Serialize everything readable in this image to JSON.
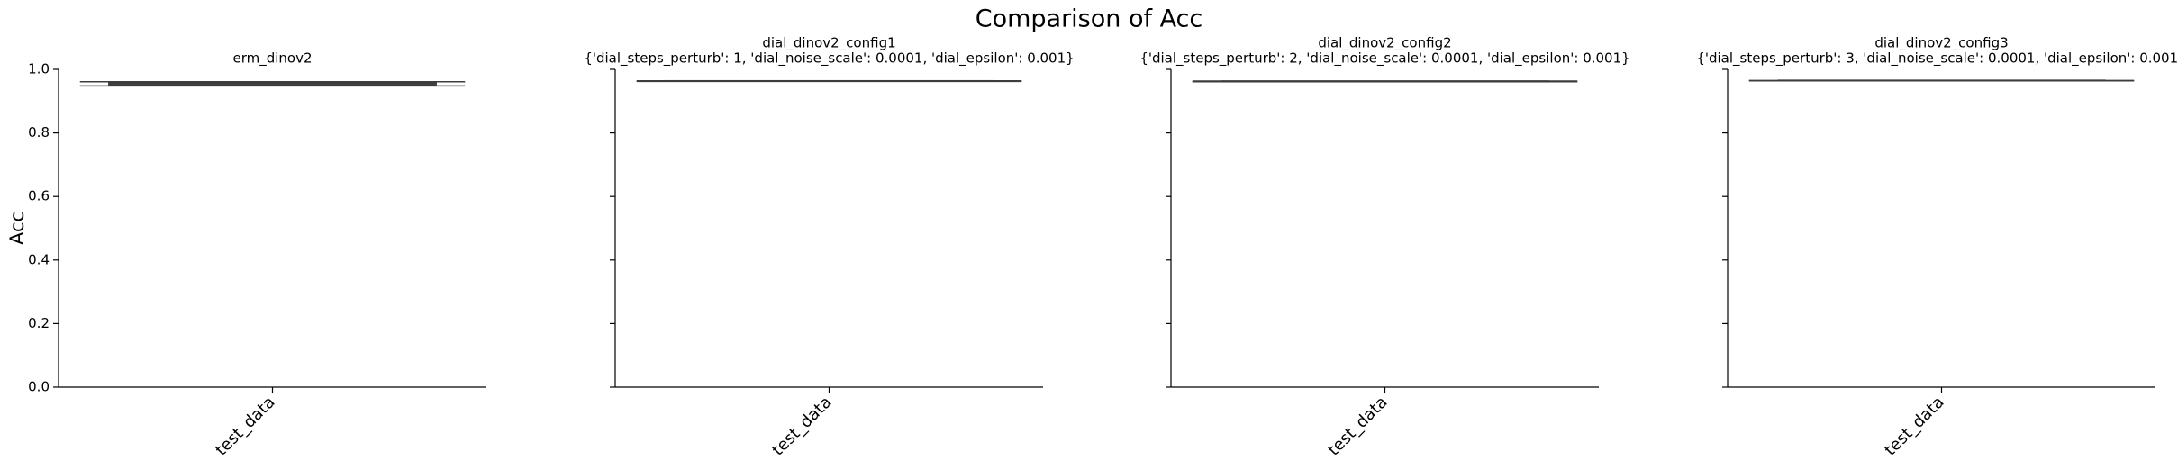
{
  "title": "Comparison of Acc",
  "chart_data": [
    {
      "type": "box",
      "title": "erm_dinov2",
      "ylabel": "Acc",
      "categories": [
        "test_data"
      ],
      "min": [
        0.948
      ],
      "q1": [
        0.951
      ],
      "median": [
        0.956
      ],
      "q3": [
        0.959
      ],
      "max": [
        0.961
      ],
      "color": "#3274a1",
      "ylim": [
        0,
        1
      ],
      "yticks": [
        {
          "value": 0,
          "label": "0.0"
        },
        0.2,
        0.4,
        0.6,
        0.8,
        {
          "value": 1,
          "label": "1.0"
        }
      ],
      "yticklabels": true
    },
    {
      "type": "box",
      "title": "dial_dinov2_config1",
      "subtitle": "{'dial_steps_perturb': 1, 'dial_noise_scale': 0.0001, 'dial_epsilon': 0.001}",
      "categories": [
        "test_data"
      ],
      "min": [
        0.962
      ],
      "q1": [
        0.963
      ],
      "median": [
        0.963
      ],
      "q3": [
        0.964
      ],
      "max": [
        0.964
      ],
      "color": "#3274a1",
      "ylim": [
        0,
        1
      ],
      "yticks": [
        0,
        0.2,
        0.4,
        0.6,
        0.8,
        1
      ],
      "yticklabels": false
    },
    {
      "type": "box",
      "title": "dial_dinov2_config2",
      "subtitle": "{'dial_steps_perturb': 2, 'dial_noise_scale': 0.0001, 'dial_epsilon': 0.001}",
      "categories": [
        "test_data"
      ],
      "min": [
        0.961
      ],
      "q1": [
        0.961
      ],
      "median": [
        0.962
      ],
      "q3": [
        0.963
      ],
      "max": [
        0.963
      ],
      "color": "#3274a1",
      "ylim": [
        0,
        1
      ],
      "yticks": [
        0,
        0.2,
        0.4,
        0.6,
        0.8,
        1
      ],
      "yticklabels": false
    },
    {
      "type": "box",
      "title": "dial_dinov2_config3",
      "subtitle": "{'dial_steps_perturb': 3, 'dial_noise_scale': 0.0001, 'dial_epsilon': 0.001}",
      "categories": [
        "test_data"
      ],
      "min": [
        0.964
      ],
      "q1": [
        0.964
      ],
      "median": [
        0.965
      ],
      "q3": [
        0.965
      ],
      "max": [
        0.965
      ],
      "color": "#3274a1",
      "ylim": [
        0,
        1
      ],
      "yticks": [
        0,
        0.2,
        0.4,
        0.6,
        0.8,
        1
      ],
      "yticklabels": false
    }
  ]
}
